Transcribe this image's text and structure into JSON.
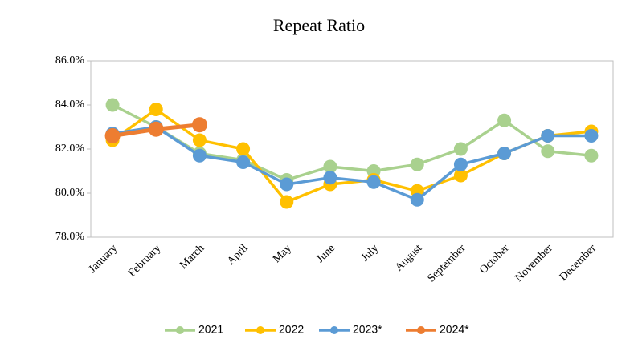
{
  "chart_data": {
    "type": "line",
    "title": "Repeat Ratio",
    "categories": [
      "January",
      "February",
      "March",
      "April",
      "May",
      "June",
      "July",
      "August",
      "September",
      "October",
      "November",
      "December"
    ],
    "series": [
      {
        "name": "2021",
        "color": "#a9d18e",
        "values": [
          84.0,
          83.0,
          81.8,
          81.5,
          80.6,
          81.2,
          81.0,
          81.3,
          82.0,
          83.3,
          81.9,
          81.7
        ]
      },
      {
        "name": "2022",
        "color": "#ffc000",
        "values": [
          82.4,
          83.8,
          82.4,
          82.0,
          79.6,
          80.4,
          80.6,
          80.1,
          80.8,
          81.8,
          82.6,
          82.8
        ]
      },
      {
        "name": "2023*",
        "color": "#5b9bd5",
        "values": [
          82.7,
          83.0,
          81.7,
          81.4,
          80.4,
          80.7,
          80.5,
          79.7,
          81.3,
          81.8,
          82.6,
          82.6
        ]
      },
      {
        "name": "2024*",
        "color": "#ed7d31",
        "values": [
          82.6,
          82.9,
          83.1,
          null,
          null,
          null,
          null,
          null,
          null,
          null,
          null,
          null
        ]
      }
    ],
    "ylim": [
      78,
      86
    ],
    "yticks": [
      {
        "value": 78,
        "label": "78.0%"
      },
      {
        "value": 80,
        "label": "80.0%"
      },
      {
        "value": 82,
        "label": "82.0%"
      },
      {
        "value": 84,
        "label": "84.0%"
      },
      {
        "value": 86,
        "label": "86.0%"
      }
    ],
    "grid": false,
    "legend": "bottom"
  }
}
